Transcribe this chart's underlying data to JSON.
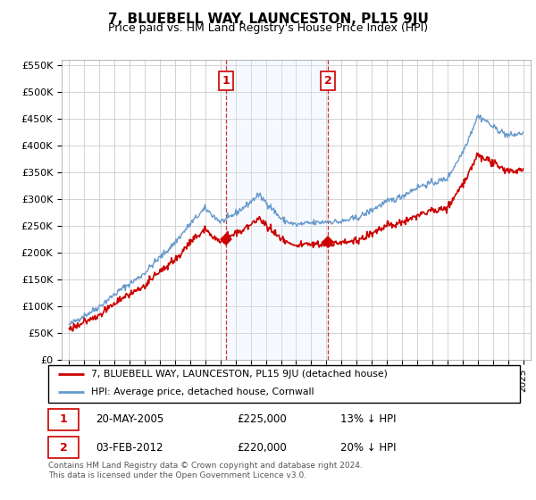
{
  "title": "7, BLUEBELL WAY, LAUNCESTON, PL15 9JU",
  "subtitle": "Price paid vs. HM Land Registry's House Price Index (HPI)",
  "hpi_label": "HPI: Average price, detached house, Cornwall",
  "property_label": "7, BLUEBELL WAY, LAUNCESTON, PL15 9JU (detached house)",
  "footer": "Contains HM Land Registry data © Crown copyright and database right 2024.\nThis data is licensed under the Open Government Licence v3.0.",
  "sale1_date": "20-MAY-2005",
  "sale1_price": "£225,000",
  "sale1_hpi": "13% ↓ HPI",
  "sale1_year": 2005.38,
  "sale1_value": 225000,
  "sale2_date": "03-FEB-2012",
  "sale2_price": "£220,000",
  "sale2_hpi": "20% ↓ HPI",
  "sale2_year": 2012.09,
  "sale2_value": 220000,
  "property_color": "#cc0000",
  "hpi_color": "#6699cc",
  "shade_color": "#ddeeff",
  "vline_color": "#cc0000",
  "background_color": "#ffffff",
  "grid_color": "#cccccc",
  "ylim": [
    0,
    560000
  ],
  "yticks": [
    0,
    50000,
    100000,
    150000,
    200000,
    250000,
    300000,
    350000,
    400000,
    450000,
    500000,
    550000
  ],
  "ytick_labels": [
    "£0",
    "£50K",
    "£100K",
    "£150K",
    "£200K",
    "£250K",
    "£300K",
    "£350K",
    "£400K",
    "£450K",
    "£500K",
    "£550K"
  ],
  "xlim_start": 1994.5,
  "xlim_end": 2025.5,
  "xticks": [
    1995,
    1996,
    1997,
    1998,
    1999,
    2000,
    2001,
    2002,
    2003,
    2004,
    2005,
    2006,
    2007,
    2008,
    2009,
    2010,
    2011,
    2012,
    2013,
    2014,
    2015,
    2016,
    2017,
    2018,
    2019,
    2020,
    2021,
    2022,
    2023,
    2024,
    2025
  ]
}
